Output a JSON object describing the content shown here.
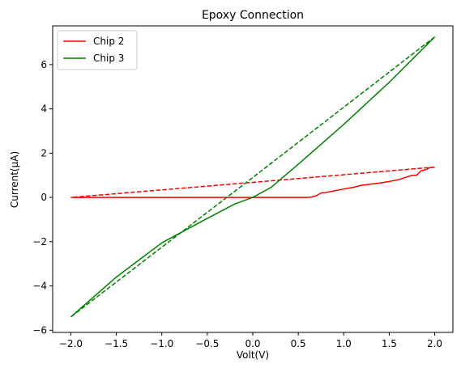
{
  "chart_data": {
    "type": "line",
    "title": "Epoxy Connection",
    "xlabel": "Volt(V)",
    "ylabel": "Current(μA)",
    "xlim": [
      -2.2,
      2.2
    ],
    "ylim": [
      -6.1,
      7.75
    ],
    "xticks": [
      -2.0,
      -1.5,
      -1.0,
      -0.5,
      0.0,
      0.5,
      1.0,
      1.5,
      2.0
    ],
    "xtick_labels": [
      "−2.0",
      "−1.5",
      "−1.0",
      "−0.5",
      "0.0",
      "0.5",
      "1.0",
      "1.5",
      "2.0"
    ],
    "yticks": [
      -6,
      -4,
      -2,
      0,
      2,
      4,
      6
    ],
    "ytick_labels": [
      "−6",
      "−4",
      "−2",
      "0",
      "2",
      "4",
      "6"
    ],
    "grid": false,
    "legend": "top-left",
    "series": [
      {
        "name": "Chip 2",
        "color": "#ff0000",
        "forward": {
          "x": [
            -2.0,
            -1.0,
            0.0,
            0.6,
            0.65,
            0.7,
            0.75,
            0.8,
            0.9,
            1.0,
            1.1,
            1.2,
            1.3,
            1.4,
            1.5,
            1.6,
            1.7,
            1.75,
            1.8,
            1.85,
            1.9,
            1.95,
            2.0
          ],
          "y": [
            0.0,
            0.0,
            0.0,
            0.0,
            0.02,
            0.08,
            0.2,
            0.22,
            0.3,
            0.38,
            0.45,
            0.55,
            0.6,
            0.65,
            0.72,
            0.8,
            0.93,
            1.0,
            1.0,
            1.2,
            1.25,
            1.35,
            1.37
          ]
        },
        "reverse": {
          "x": [
            2.0,
            0.0,
            -2.0
          ],
          "y": [
            1.37,
            0.68,
            0.0
          ]
        }
      },
      {
        "name": "Chip 3",
        "color": "#008000",
        "forward": {
          "x": [
            -2.0,
            -1.5,
            -1.0,
            -0.5,
            -0.2,
            0.0,
            0.2,
            0.5,
            1.0,
            1.5,
            2.0
          ],
          "y": [
            -5.4,
            -3.6,
            -2.05,
            -0.95,
            -0.3,
            0.0,
            0.45,
            1.5,
            3.3,
            5.2,
            7.25
          ]
        },
        "reverse": {
          "x": [
            2.0,
            0.0,
            -2.0
          ],
          "y": [
            7.25,
            0.9,
            -5.4
          ]
        }
      }
    ]
  }
}
